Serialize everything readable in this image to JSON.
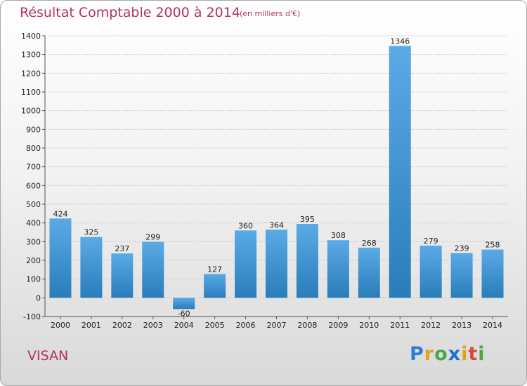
{
  "title": "Résultat Comptable 2000 à 2014",
  "subtitle": "(en milliers d'€)",
  "town": "VISAN",
  "logo": "Proxiti",
  "colors": {
    "title": "#b5325c",
    "bar_top": "#5aaae6",
    "bar_bottom": "#2a7dba"
  },
  "chart_data": {
    "type": "bar",
    "title": "Résultat Comptable 2000 à 2014",
    "xlabel": "",
    "ylabel": "",
    "categories": [
      "2000",
      "2001",
      "2002",
      "2003",
      "2004",
      "2005",
      "2006",
      "2007",
      "2008",
      "2009",
      "2010",
      "2011",
      "2012",
      "2013",
      "2014"
    ],
    "values": [
      424,
      325,
      237,
      299,
      -60,
      127,
      360,
      364,
      395,
      308,
      268,
      1346,
      279,
      239,
      258
    ],
    "ylim": [
      -100,
      1400
    ],
    "yticks": [
      -100,
      0,
      100,
      200,
      300,
      400,
      500,
      600,
      700,
      800,
      900,
      1000,
      1100,
      1200,
      1300,
      1400
    ],
    "grid": "horizontal dashed",
    "legend": "none"
  }
}
